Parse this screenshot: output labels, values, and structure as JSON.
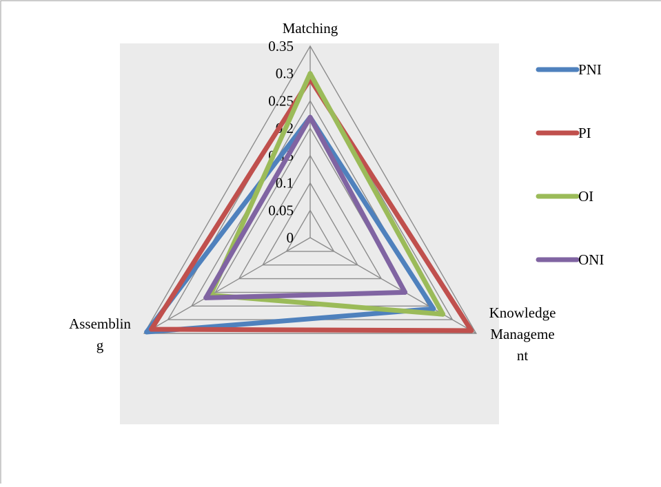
{
  "chart_data": {
    "type": "radar",
    "title": "",
    "axes": [
      "Matching",
      "Knowledge Manageme nt",
      "Assemblin g"
    ],
    "axis_label_lines": [
      [
        "Matching"
      ],
      [
        "Knowledge",
        "Manageme",
        "nt"
      ],
      [
        "Assemblin",
        "g"
      ]
    ],
    "tick_labels": [
      "0",
      "0.05",
      "0.1",
      "0.15",
      "0.2",
      "0.25",
      "0.3",
      "0.35"
    ],
    "ylim": [
      0,
      0.35
    ],
    "grid": true,
    "legend_position": "right",
    "series": [
      {
        "name": "PNI",
        "color": "#4f81bd",
        "values": [
          0.22,
          0.26,
          0.345
        ]
      },
      {
        "name": "PI",
        "color": "#c0504d",
        "values": [
          0.29,
          0.34,
          0.335
        ]
      },
      {
        "name": "OI",
        "color": "#9bbb59",
        "values": [
          0.3,
          0.28,
          0.21
        ]
      },
      {
        "name": "ONI",
        "color": "#8064a2",
        "values": [
          0.22,
          0.2,
          0.22
        ]
      }
    ]
  }
}
